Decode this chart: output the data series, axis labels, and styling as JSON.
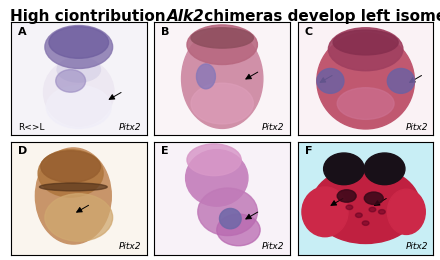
{
  "title_regular": "High ciontribution ",
  "title_italic": "Alk2",
  "title_rest": " chimeras develop left isomerism.",
  "title_fontsize": 11,
  "panel_labels": [
    "A",
    "B",
    "C",
    "D",
    "E",
    "F"
  ],
  "panel_sublabel_left_A": "R<>L",
  "panel_sublabels_right": [
    "Pitx2",
    "Pitx2",
    "Pitx2",
    "Pitx2",
    "Pitx2",
    "Pitx2"
  ],
  "figure_bg": "#ffffff",
  "panel_border_color": "#000000",
  "label_fontsize": 8,
  "sublabel_fontsize": 6.5,
  "arrows_A": [
    [
      0.7,
      0.3
    ]
  ],
  "arrows_B": [
    [
      0.65,
      0.48
    ]
  ],
  "arrows_C": [
    [
      0.14,
      0.45
    ],
    [
      0.8,
      0.45
    ]
  ],
  "arrows_D": [
    [
      0.46,
      0.36
    ]
  ],
  "arrows_E": [
    [
      0.65,
      0.3
    ]
  ],
  "arrows_F": [
    [
      0.22,
      0.42
    ],
    [
      0.54,
      0.42
    ]
  ]
}
